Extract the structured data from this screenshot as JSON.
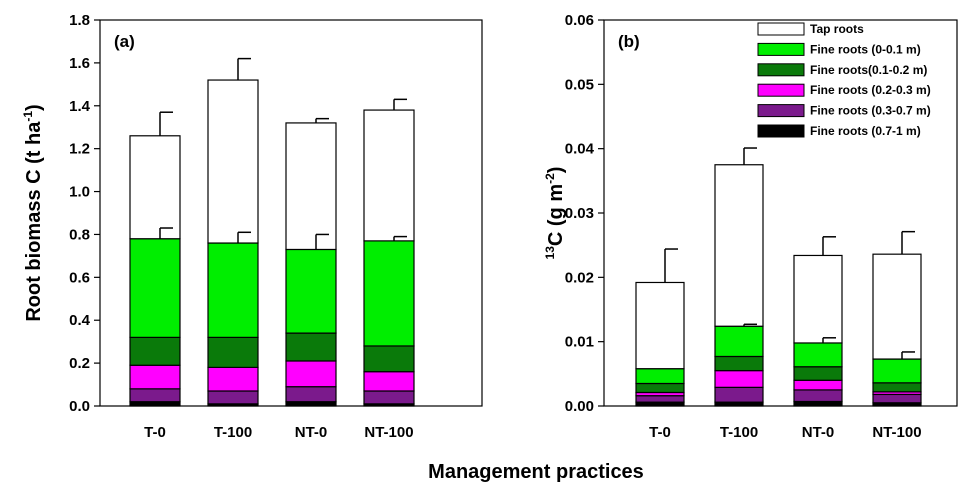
{
  "figure": {
    "xlabel": "Management practices"
  },
  "colors": {
    "tap_roots": "#ffffff",
    "fine_0_0_1": "#00ee00",
    "fine_0_1_0_2": "#0a7a0a",
    "fine_0_2_0_3": "#ff00ff",
    "fine_0_3_0_7": "#7b1a8c",
    "fine_0_7_1": "#000000",
    "outline": "#000000"
  },
  "chart_data": [
    {
      "type": "bar",
      "stacked": true,
      "panel_label": "(a)",
      "categories": [
        "T-0",
        "T-100",
        "NT-0",
        "NT-100"
      ],
      "ylabel_main": "Root biomass C (t ha",
      "ylabel_sup": "-1",
      "ylabel_end": ")",
      "ylim": [
        0,
        1.8
      ],
      "yticks": [
        "0.0",
        "0.2",
        "0.4",
        "0.6",
        "0.8",
        "1.0",
        "1.2",
        "1.4",
        "1.6",
        "1.8"
      ],
      "series": [
        {
          "key": "fine_0_7_1",
          "values": [
            0.02,
            0.01,
            0.02,
            0.01
          ]
        },
        {
          "key": "fine_0_3_0_7",
          "values": [
            0.06,
            0.06,
            0.07,
            0.06
          ]
        },
        {
          "key": "fine_0_2_0_3",
          "values": [
            0.11,
            0.11,
            0.12,
            0.09
          ]
        },
        {
          "key": "fine_0_1_0_2",
          "values": [
            0.13,
            0.14,
            0.13,
            0.12
          ]
        },
        {
          "key": "fine_0_0_1",
          "values": [
            0.46,
            0.44,
            0.39,
            0.49
          ]
        },
        {
          "key": "tap_roots",
          "values": [
            0.48,
            0.76,
            0.59,
            0.61
          ]
        }
      ],
      "errors": [
        {
          "key": "fine_0_0_1",
          "values": [
            0.05,
            0.05,
            0.07,
            0.02
          ]
        },
        {
          "key": "tap_roots",
          "values": [
            0.11,
            0.1,
            0.02,
            0.05
          ]
        }
      ]
    },
    {
      "type": "bar",
      "stacked": true,
      "panel_label": "(b)",
      "categories": [
        "T-0",
        "T-100",
        "NT-0",
        "NT-100"
      ],
      "ylabel_pre_sup": "13",
      "ylabel_main": "C (g m",
      "ylabel_sup": "-2",
      "ylabel_end": ")",
      "ylim": [
        0,
        0.06
      ],
      "yticks": [
        "0.00",
        "0.01",
        "0.02",
        "0.03",
        "0.04",
        "0.05",
        "0.06"
      ],
      "legend_position": "top-right",
      "legend": [
        {
          "key": "tap_roots",
          "label": "Tap roots"
        },
        {
          "key": "fine_0_0_1",
          "label": "Fine roots (0-0.1 m)"
        },
        {
          "key": "fine_0_1_0_2",
          "label": "Fine roots(0.1-0.2 m)"
        },
        {
          "key": "fine_0_2_0_3",
          "label": "Fine roots (0.2-0.3 m)"
        },
        {
          "key": "fine_0_3_0_7",
          "label": "Fine roots (0.3-0.7 m)"
        },
        {
          "key": "fine_0_7_1",
          "label": "Fine roots (0.7-1 m)"
        }
      ],
      "series": [
        {
          "key": "fine_0_7_1",
          "values": [
            0.0006,
            0.0006,
            0.0007,
            0.0005
          ]
        },
        {
          "key": "fine_0_3_0_7",
          "values": [
            0.001,
            0.0023,
            0.0018,
            0.0013
          ]
        },
        {
          "key": "fine_0_2_0_3",
          "values": [
            0.0005,
            0.0026,
            0.0015,
            0.0004
          ]
        },
        {
          "key": "fine_0_1_0_2",
          "values": [
            0.0014,
            0.0022,
            0.0021,
            0.0014
          ]
        },
        {
          "key": "fine_0_0_1",
          "values": [
            0.0023,
            0.0047,
            0.0037,
            0.0037
          ]
        },
        {
          "key": "tap_roots",
          "values": [
            0.0134,
            0.0251,
            0.0136,
            0.0163
          ]
        }
      ],
      "errors": [
        {
          "key": "fine_0_0_1",
          "values": [
            0.0,
            0.0003,
            0.0008,
            0.0011
          ]
        },
        {
          "key": "tap_roots",
          "values": [
            0.0052,
            0.0026,
            0.0029,
            0.0035
          ]
        }
      ]
    }
  ]
}
